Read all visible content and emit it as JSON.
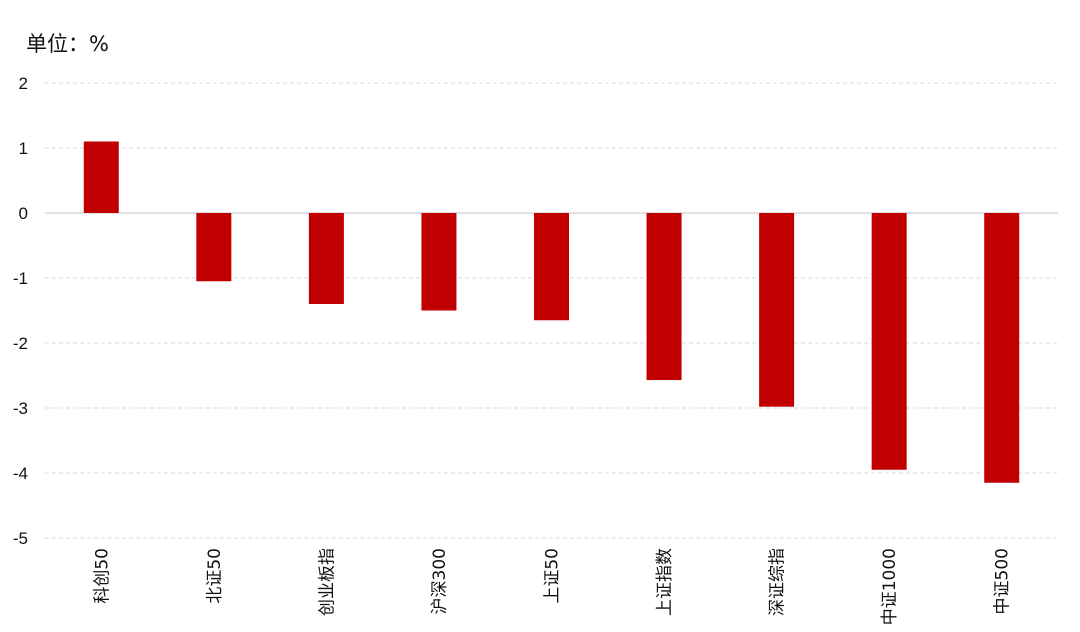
{
  "unit_label": "单位：%",
  "chart_data": {
    "type": "bar",
    "title": "",
    "xlabel": "",
    "ylabel": "",
    "categories": [
      "科创50",
      "北证50",
      "创业板指",
      "沪深300",
      "上证50",
      "上证指数",
      "深证综指",
      "中证1000",
      "中证500"
    ],
    "values": [
      1.1,
      -1.05,
      -1.4,
      -1.5,
      -1.65,
      -2.57,
      -2.98,
      -3.95,
      -4.15
    ],
    "ylim": [
      -5,
      2
    ],
    "yticks": [
      2,
      1,
      0,
      -1,
      -2,
      -3,
      -4,
      -5
    ],
    "grid": true,
    "legend": "none",
    "bar_color": "#C00000",
    "gridline_color": "#d9d9d9",
    "zero_line_color": "#d0d0d0"
  }
}
